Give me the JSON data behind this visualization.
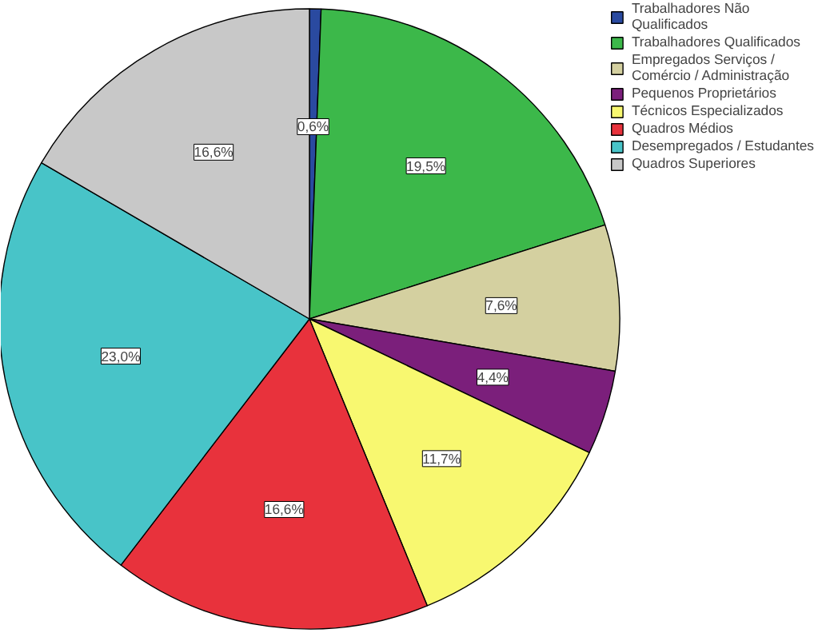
{
  "chart_data": {
    "type": "pie",
    "categories": [
      "Trabalhadores Não Qualificados",
      "Trabalhadores Qualificados",
      "Empregados Serviços / Comércio / Administração",
      "Pequenos Proprietários",
      "Técnicos Especializados",
      "Quadros Médios",
      "Desempregados / Estudantes",
      "Quadros Superiores"
    ],
    "values": [
      0.6,
      19.5,
      7.6,
      4.4,
      11.7,
      16.6,
      23.0,
      16.6
    ],
    "colors": [
      "#2a4aa0",
      "#3cb84a",
      "#d4d0a0",
      "#7b1f7b",
      "#f8f870",
      "#e8323c",
      "#48c4c8",
      "#c8c8c8"
    ],
    "value_labels": [
      "0,6%",
      "19,5%",
      "7,6%",
      "4,4%",
      "11,7%",
      "16,6%",
      "23,0%",
      "16,6%"
    ],
    "legend": "top right"
  }
}
